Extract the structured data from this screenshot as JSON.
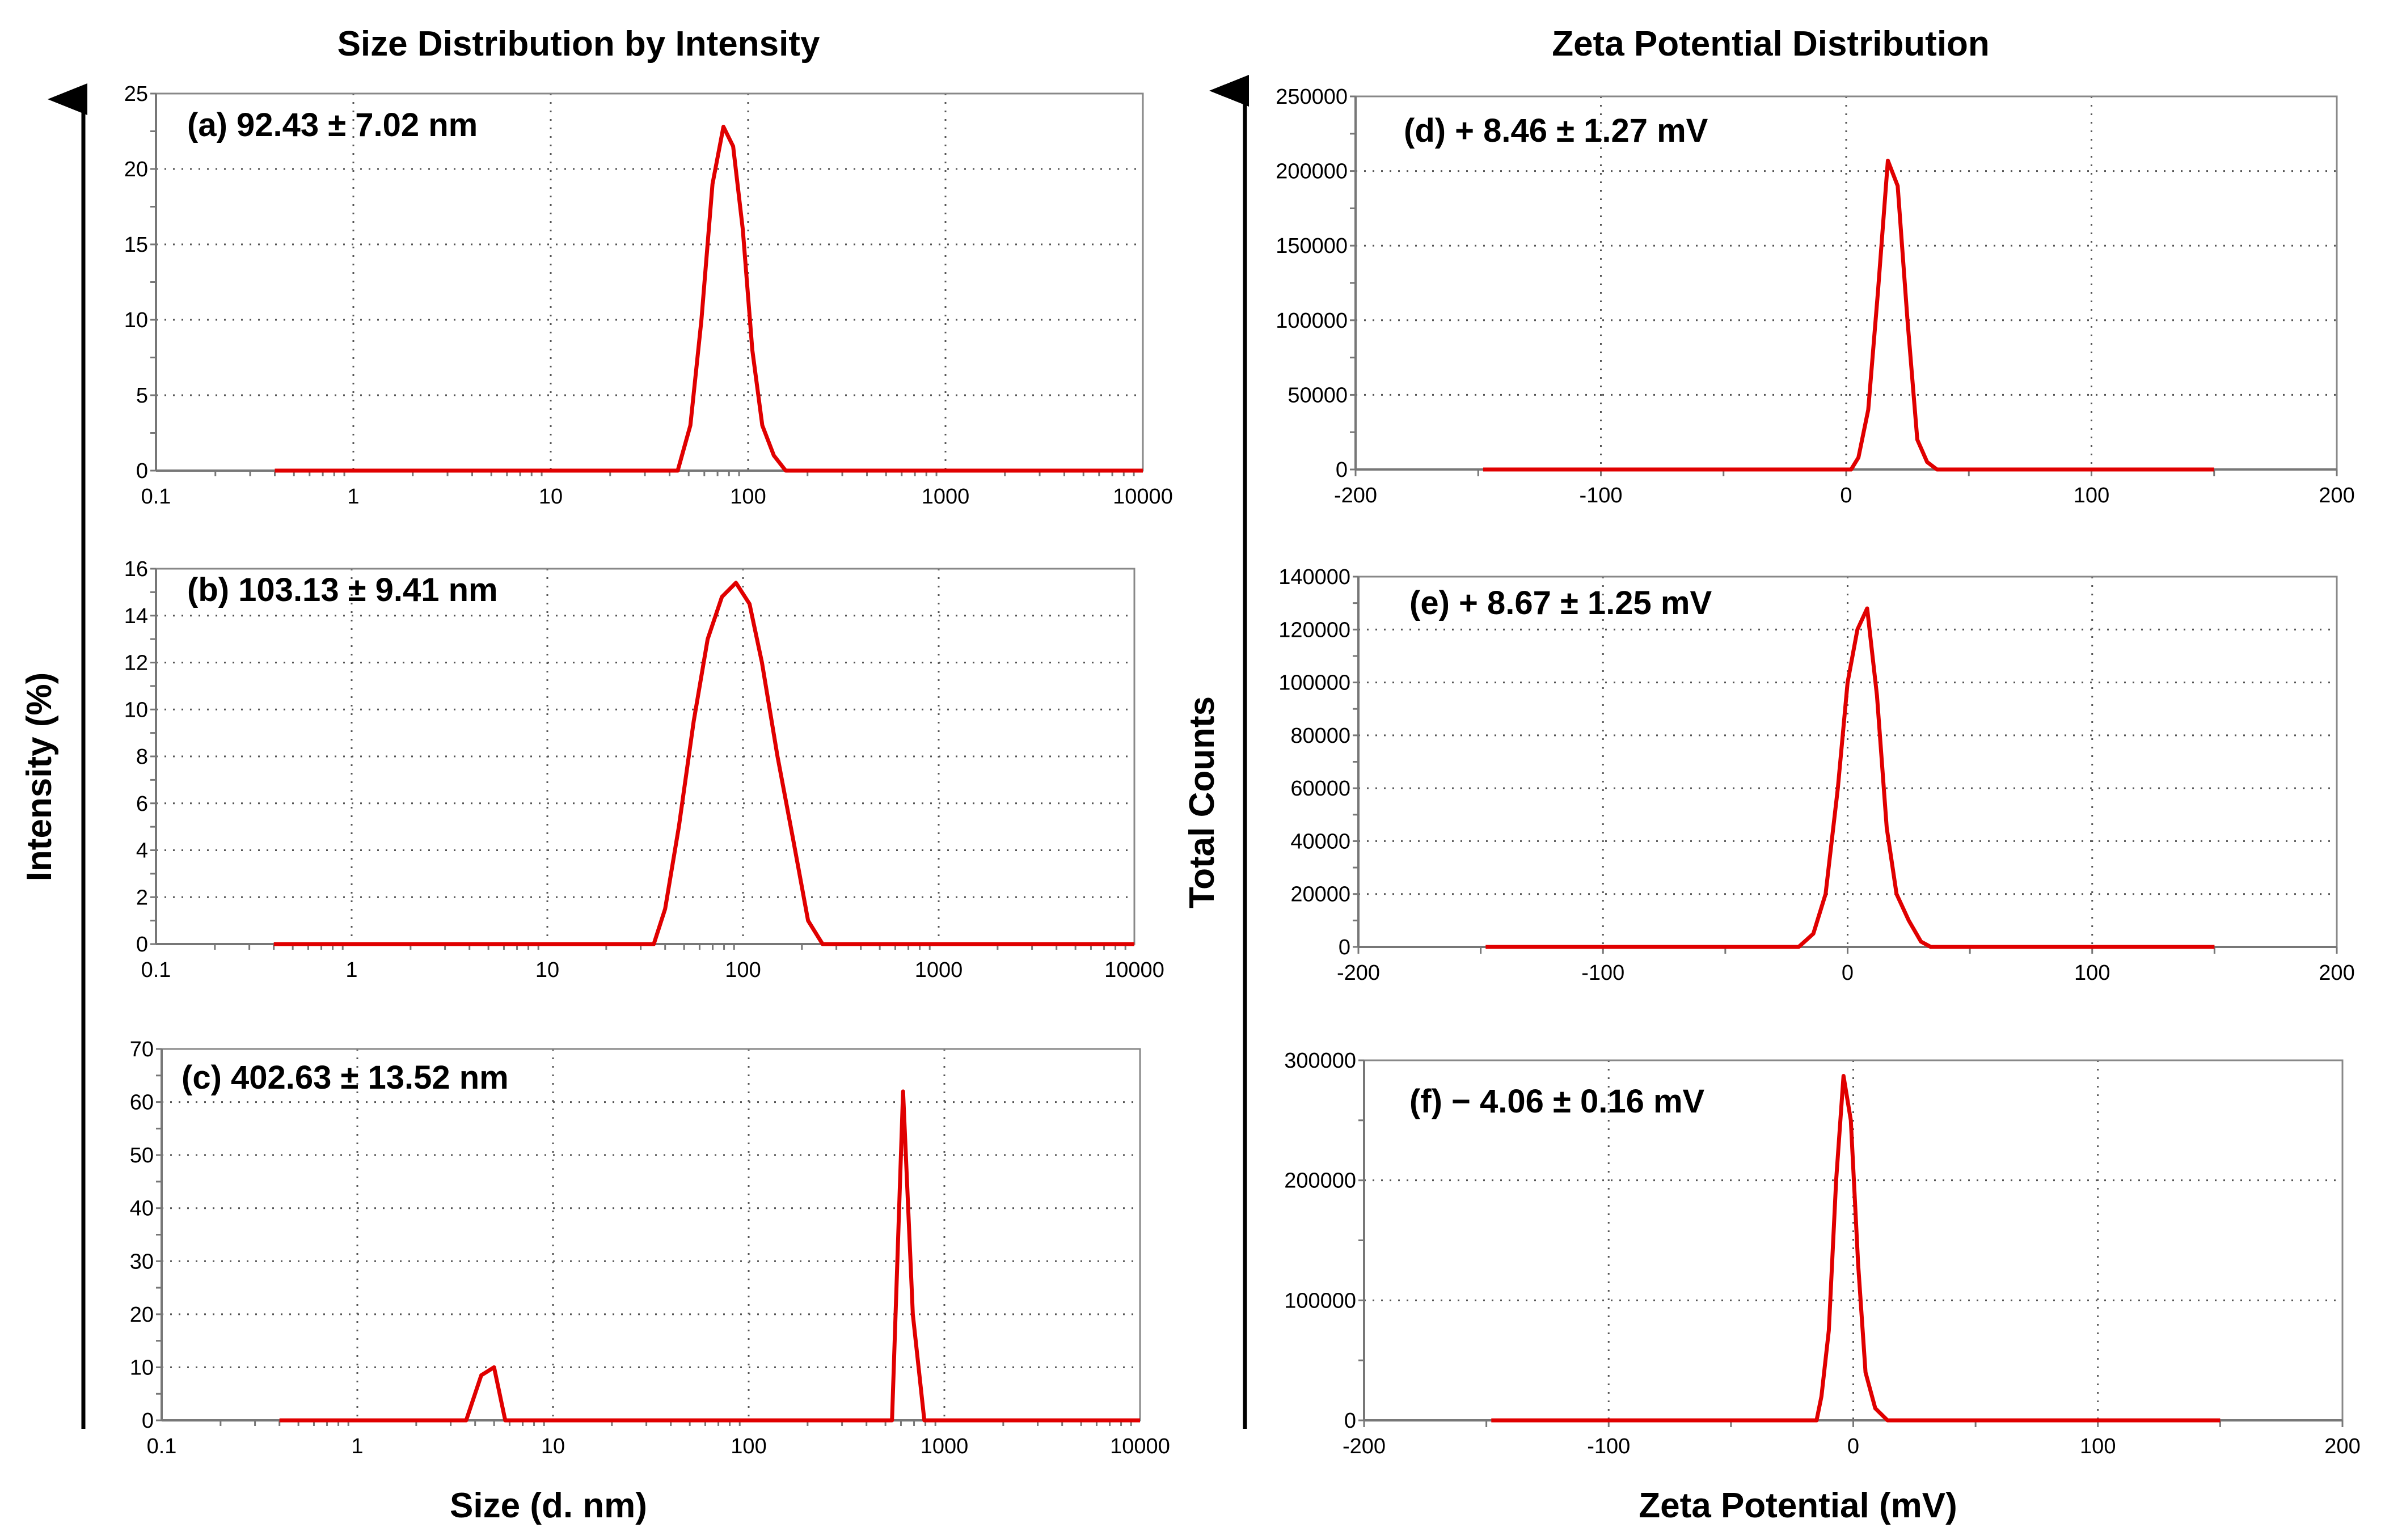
{
  "figure": {
    "left_column_title": "Size Distribution by Intensity",
    "right_column_title": "Zeta Potential Distribution",
    "left_y_title": "Intensity (%)",
    "left_x_title": "Size (d. nm)",
    "right_y_title": "Total Counts",
    "right_x_title": "Zeta Potential (mV)",
    "line_color": "#e00000"
  },
  "chart_data": [
    {
      "id": "a",
      "type": "line",
      "xscale": "log",
      "label": "(a) 92.43 ± 7.02 nm",
      "xlim": [
        0.1,
        10000
      ],
      "ylim": [
        0,
        25
      ],
      "xticks": [
        0.1,
        1,
        10,
        100,
        1000,
        10000
      ],
      "xtick_labels": [
        "0.1",
        "1",
        "10",
        "100",
        "1000",
        "10000"
      ],
      "yticks": [
        0,
        5,
        10,
        15,
        20,
        25
      ],
      "ytick_labels": [
        "0",
        "5",
        "10",
        "15",
        "20",
        "25"
      ],
      "series": [
        {
          "name": "intensity",
          "x": [
            0.4,
            44,
            51,
            58,
            66,
            75,
            84,
            94,
            105,
            118,
            135,
            155,
            175,
            10000
          ],
          "y": [
            0,
            0,
            3,
            10,
            19,
            22.8,
            21.5,
            16,
            8,
            3,
            1,
            0,
            0,
            0
          ]
        }
      ]
    },
    {
      "id": "b",
      "type": "line",
      "xscale": "log",
      "label": "(b) 103.13 ± 9.41 nm",
      "xlim": [
        0.1,
        10000
      ],
      "ylim": [
        0,
        16
      ],
      "xticks": [
        0.1,
        1,
        10,
        100,
        1000,
        10000
      ],
      "xtick_labels": [
        "0.1",
        "1",
        "10",
        "100",
        "1000",
        "10000"
      ],
      "yticks": [
        0,
        2,
        4,
        6,
        8,
        10,
        12,
        14,
        16
      ],
      "ytick_labels": [
        "0",
        "2",
        "4",
        "6",
        "8",
        "10",
        "12",
        "14",
        "16"
      ],
      "series": [
        {
          "name": "intensity",
          "x": [
            0.4,
            35,
            40,
            47,
            56,
            66,
            78,
            92,
            108,
            125,
            150,
            180,
            215,
            255,
            290,
            10000
          ],
          "y": [
            0,
            0,
            1.5,
            5,
            9.5,
            13,
            14.8,
            15.4,
            14.5,
            12,
            8,
            4.5,
            1,
            0,
            0,
            0
          ]
        }
      ]
    },
    {
      "id": "c",
      "type": "line",
      "xscale": "log",
      "label": "(c) 402.63 ± 13.52 nm",
      "xlim": [
        0.1,
        10000
      ],
      "ylim": [
        0,
        70
      ],
      "xticks": [
        0.1,
        1,
        10,
        100,
        1000,
        10000
      ],
      "xtick_labels": [
        "0.1",
        "1",
        "10",
        "100",
        "1000",
        "10000"
      ],
      "yticks": [
        0,
        10,
        20,
        30,
        40,
        50,
        60,
        70
      ],
      "ytick_labels": [
        "0",
        "10",
        "20",
        "30",
        "40",
        "50",
        "60",
        "70"
      ],
      "series": [
        {
          "name": "intensity",
          "x": [
            0.4,
            3.6,
            4.3,
            5.0,
            5.7,
            540,
            615,
            690,
            790,
            10000
          ],
          "y": [
            0,
            0,
            8.5,
            10,
            0,
            0,
            62,
            20,
            0,
            0
          ]
        }
      ]
    },
    {
      "id": "d",
      "type": "line",
      "xscale": "linear",
      "label": "(d) + 8.46 ± 1.27 mV",
      "xlim": [
        -200,
        200
      ],
      "ylim": [
        0,
        250000
      ],
      "xticks": [
        -200,
        -100,
        0,
        100,
        200
      ],
      "xtick_labels": [
        "-200",
        "-100",
        "0",
        "100",
        "200"
      ],
      "yticks": [
        0,
        50000,
        100000,
        150000,
        200000,
        250000
      ],
      "ytick_labels": [
        "0",
        "50000",
        "100000",
        "150000",
        "200000",
        "250000"
      ],
      "series": [
        {
          "name": "counts",
          "x": [
            -148,
            2,
            5,
            9,
            13,
            17,
            21,
            25,
            29,
            33,
            37,
            150
          ],
          "y": [
            0,
            0,
            8000,
            40000,
            120000,
            207000,
            190000,
            100000,
            20000,
            5000,
            0,
            0
          ]
        }
      ]
    },
    {
      "id": "e",
      "type": "line",
      "xscale": "linear",
      "label": "(e) + 8.67 ± 1.25 mV",
      "xlim": [
        -200,
        200
      ],
      "ylim": [
        0,
        140000
      ],
      "xticks": [
        -200,
        -100,
        0,
        100,
        200
      ],
      "xtick_labels": [
        "-200",
        "-100",
        "0",
        "100",
        "200"
      ],
      "yticks": [
        0,
        20000,
        40000,
        60000,
        80000,
        100000,
        120000,
        140000
      ],
      "ytick_labels": [
        "0",
        "20000",
        "40000",
        "60000",
        "80000",
        "100000",
        "120000",
        "140000"
      ],
      "series": [
        {
          "name": "counts",
          "x": [
            -148,
            -20,
            -14,
            -9,
            -4,
            0,
            4,
            8,
            12,
            16,
            20,
            25,
            30,
            34,
            150
          ],
          "y": [
            0,
            0,
            5000,
            20000,
            60000,
            100000,
            120000,
            128000,
            95000,
            45000,
            20000,
            10000,
            2000,
            0,
            0
          ]
        }
      ]
    },
    {
      "id": "f",
      "type": "line",
      "xscale": "linear",
      "label": "(f) − 4.06 ± 0.16 mV",
      "xlim": [
        -200,
        200
      ],
      "ylim": [
        0,
        300000
      ],
      "xticks": [
        -200,
        -100,
        0,
        100,
        200
      ],
      "xtick_labels": [
        "-200",
        "-100",
        "0",
        "100",
        "200"
      ],
      "yticks": [
        0,
        100000,
        200000,
        300000
      ],
      "ytick_labels": [
        "0",
        "100000",
        "200000",
        "300000"
      ],
      "series": [
        {
          "name": "counts",
          "x": [
            -148,
            -15,
            -13,
            -10,
            -7,
            -4,
            -1,
            2,
            5,
            9,
            14,
            150
          ],
          "y": [
            0,
            0,
            20000,
            75000,
            200000,
            287000,
            250000,
            130000,
            40000,
            10000,
            0,
            0
          ]
        }
      ]
    }
  ]
}
